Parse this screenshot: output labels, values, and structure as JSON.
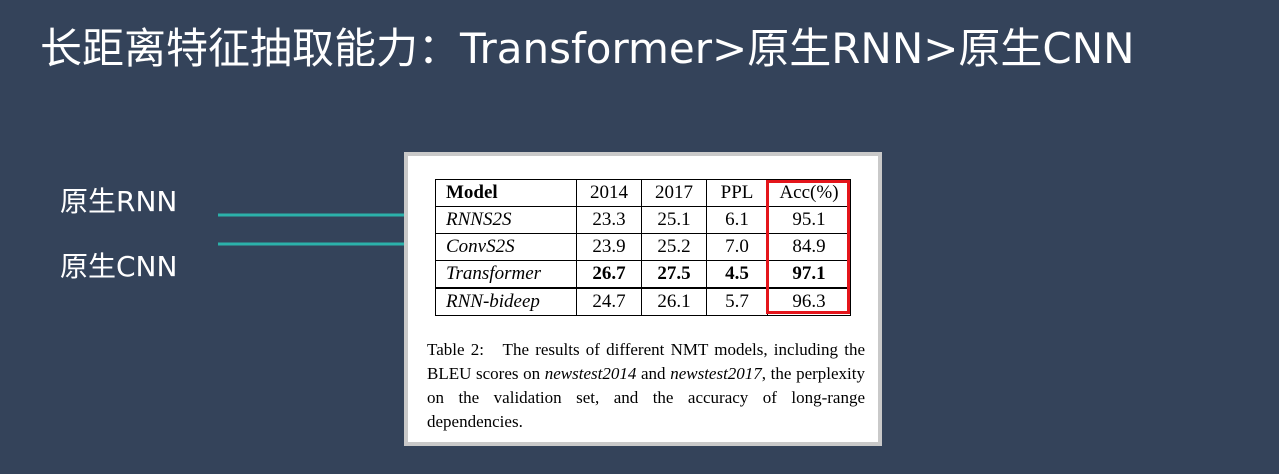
{
  "slide": {
    "title": "长距离特征抽取能力：Transformer>原生RNN>原生CNN",
    "labels": {
      "rnn": "原生RNN",
      "cnn": "原生CNN"
    },
    "arrow_color": "#2bb1aa"
  },
  "table": {
    "headers": [
      "Model",
      "2014",
      "2017",
      "PPL",
      "Acc(%)"
    ],
    "rows": [
      {
        "model": "RNNS2S",
        "y2014": "23.3",
        "y2017": "25.1",
        "ppl": "6.1",
        "acc": "95.1"
      },
      {
        "model": "ConvS2S",
        "y2014": "23.9",
        "y2017": "25.2",
        "ppl": "7.0",
        "acc": "84.9"
      },
      {
        "model": "Transformer",
        "y2014": "26.7",
        "y2017": "27.5",
        "ppl": "4.5",
        "acc": "97.1"
      },
      {
        "model": "RNN-bideep",
        "y2014": "24.7",
        "y2017": "26.1",
        "ppl": "5.7",
        "acc": "96.3"
      }
    ],
    "highlight_color": "#e4151b"
  },
  "caption": {
    "part1": "Table 2:   The results of different NMT models, including the BLEU scores on ",
    "ds1": "newstest2014",
    "part2": " and ",
    "ds2": "newstest2017",
    "part3": ", the perplexity on the validation set, and the accuracy of long-range dependencies."
  }
}
